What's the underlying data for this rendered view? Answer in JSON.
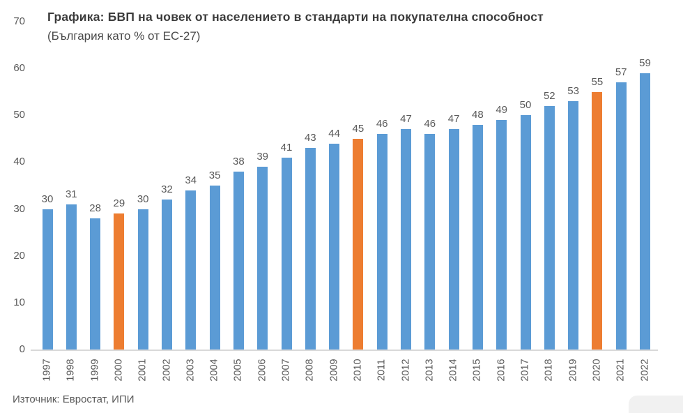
{
  "chart_data": {
    "type": "bar",
    "title": "Графика: БВП на човек от населението в стандарти на покупателна способност",
    "subtitle": "(България като % от ЕС-27)",
    "categories": [
      "1997",
      "1998",
      "1999",
      "2000",
      "2001",
      "2002",
      "2003",
      "2004",
      "2005",
      "2006",
      "2007",
      "2008",
      "2009",
      "2010",
      "2011",
      "2012",
      "2013",
      "2014",
      "2015",
      "2016",
      "2017",
      "2018",
      "2019",
      "2020",
      "2021",
      "2022"
    ],
    "values": [
      30,
      31,
      28,
      29,
      30,
      32,
      34,
      35,
      38,
      39,
      41,
      43,
      44,
      45,
      46,
      47,
      46,
      47,
      48,
      49,
      50,
      52,
      53,
      55,
      57,
      59
    ],
    "highlight_years": [
      "2000",
      "2010",
      "2020"
    ],
    "bar_color": "#5B9BD5",
    "highlight_color": "#ED7D31",
    "ylim": [
      0,
      70
    ],
    "yticks": [
      0,
      10,
      20,
      30,
      40,
      50,
      60,
      70
    ],
    "grid": false,
    "legend": null,
    "xlabel": "",
    "ylabel": "",
    "source": "Източник: Евростат, ИПИ"
  }
}
